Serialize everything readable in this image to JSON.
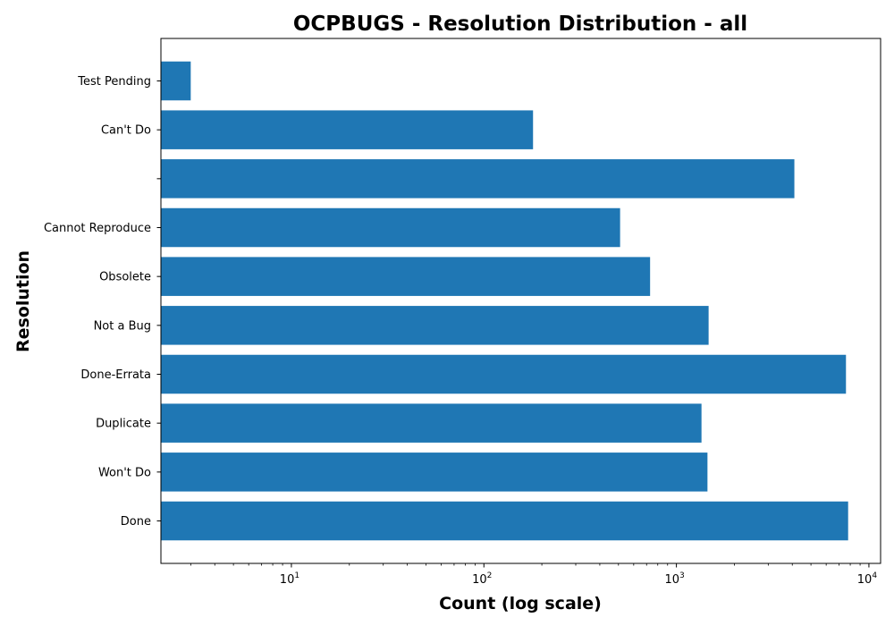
{
  "chart_data": {
    "type": "bar",
    "orientation": "horizontal",
    "title": "OCPBUGS - Resolution Distribution - all",
    "xlabel": "Count (log scale)",
    "ylabel": "Resolution",
    "xscale": "log",
    "xlim": [
      2.1,
      11500
    ],
    "x_ticks": [
      {
        "value": 10,
        "base": "10",
        "exponent": "1"
      },
      {
        "value": 100,
        "base": "10",
        "exponent": "2"
      },
      {
        "value": 1000,
        "base": "10",
        "exponent": "3"
      },
      {
        "value": 10000,
        "base": "10",
        "exponent": "4"
      }
    ],
    "categories": [
      "Done",
      "Won't Do",
      "Duplicate",
      "Done-Errata",
      "Not a Bug",
      "Obsolete",
      "Cannot Reproduce",
      "",
      "Can't Do",
      "Test Pending"
    ],
    "values": [
      7800,
      1450,
      1350,
      7600,
      1470,
      730,
      510,
      4100,
      180,
      3
    ],
    "grid": false,
    "bar_color": "#1f77b4"
  }
}
